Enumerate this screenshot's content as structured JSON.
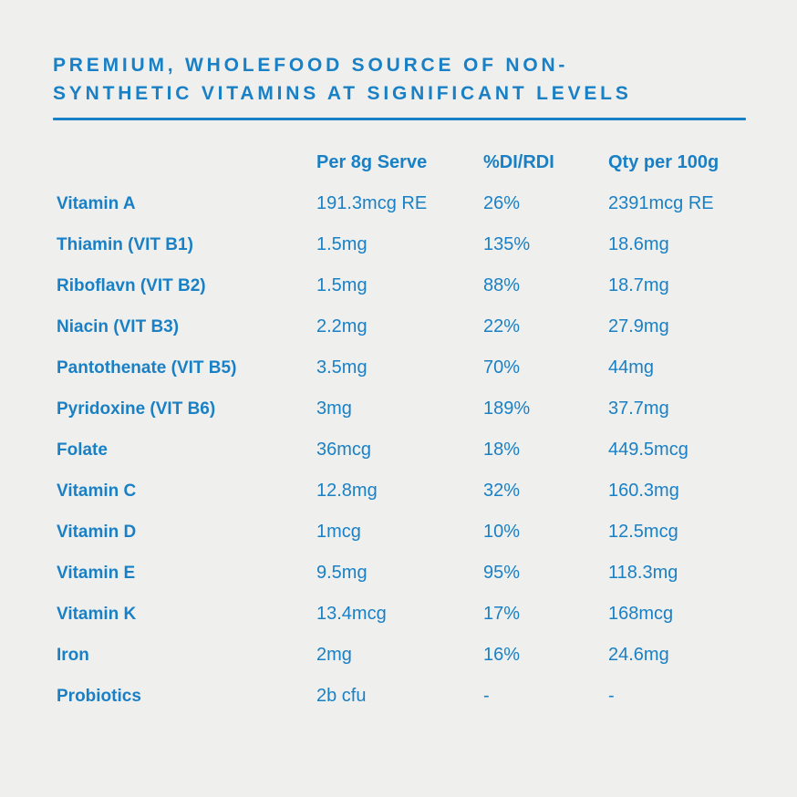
{
  "page": {
    "background": "#eff0ee",
    "accent": "#1a80c5"
  },
  "header": {
    "title_line1": "PREMIUM, WHOLEFOOD SOURCE OF NON-",
    "title_line2": "SYNTHETIC VITAMINS AT SIGNIFICANT LEVELS"
  },
  "chart_data": {
    "type": "table",
    "title": "PREMIUM, WHOLEFOOD SOURCE OF NON-SYNTHETIC VITAMINS AT SIGNIFICANT LEVELS",
    "columns": [
      "Per 8g Serve",
      "%DI/RDI",
      "Qty per 100g"
    ],
    "rows": [
      {
        "label": "Vitamin A",
        "per_8g_serve": "191.3mcg RE",
        "di_rdi_pct": "26%",
        "qty_per_100g": "2391mcg RE"
      },
      {
        "label": "Thiamin (VIT B1)",
        "per_8g_serve": "1.5mg",
        "di_rdi_pct": "135%",
        "qty_per_100g": "18.6mg"
      },
      {
        "label": "Riboflavn (VIT B2)",
        "per_8g_serve": "1.5mg",
        "di_rdi_pct": "88%",
        "qty_per_100g": "18.7mg"
      },
      {
        "label": "Niacin (VIT B3)",
        "per_8g_serve": "2.2mg",
        "di_rdi_pct": "22%",
        "qty_per_100g": "27.9mg"
      },
      {
        "label": "Pantothenate (VIT B5)",
        "per_8g_serve": "3.5mg",
        "di_rdi_pct": "70%",
        "qty_per_100g": "44mg"
      },
      {
        "label": "Pyridoxine (VIT B6)",
        "per_8g_serve": "3mg",
        "di_rdi_pct": "189%",
        "qty_per_100g": "37.7mg"
      },
      {
        "label": "Folate",
        "per_8g_serve": "36mcg",
        "di_rdi_pct": "18%",
        "qty_per_100g": "449.5mcg"
      },
      {
        "label": "Vitamin C",
        "per_8g_serve": "12.8mg",
        "di_rdi_pct": "32%",
        "qty_per_100g": "160.3mg"
      },
      {
        "label": "Vitamin D",
        "per_8g_serve": "1mcg",
        "di_rdi_pct": "10%",
        "qty_per_100g": "12.5mcg"
      },
      {
        "label": "Vitamin E",
        "per_8g_serve": "9.5mg",
        "di_rdi_pct": "95%",
        "qty_per_100g": "118.3mg"
      },
      {
        "label": "Vitamin K",
        "per_8g_serve": "13.4mcg",
        "di_rdi_pct": "17%",
        "qty_per_100g": "168mcg"
      },
      {
        "label": "Iron",
        "per_8g_serve": "2mg",
        "di_rdi_pct": "16%",
        "qty_per_100g": "24.6mg"
      },
      {
        "label": "Probiotics",
        "per_8g_serve": "2b cfu",
        "di_rdi_pct": "-",
        "qty_per_100g": "-"
      }
    ]
  }
}
